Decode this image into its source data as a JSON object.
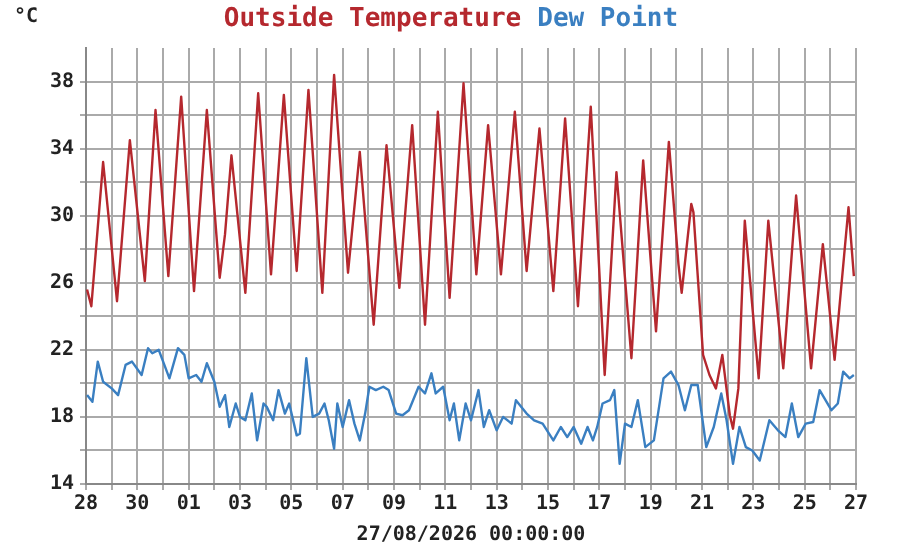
{
  "chart_data": {
    "type": "line",
    "xlabel": "27/08/2026 00:00:00",
    "ylabel": "°C",
    "legend": "top",
    "grid": true,
    "marker": "none",
    "line_style": "solid",
    "xlim": [
      "2026-07-28",
      "2026-08-27"
    ],
    "xticks": [
      {
        "value": "2026-07-28",
        "label": "28"
      },
      {
        "value": "2026-07-29",
        "label": null
      },
      {
        "value": "2026-07-30",
        "label": "30"
      },
      {
        "value": "2026-07-31",
        "label": null
      },
      {
        "value": "2026-08-01",
        "label": "01"
      },
      {
        "value": "2026-08-02",
        "label": null
      },
      {
        "value": "2026-08-03",
        "label": "03"
      },
      {
        "value": "2026-08-04",
        "label": null
      },
      {
        "value": "2026-08-05",
        "label": "05"
      },
      {
        "value": "2026-08-06",
        "label": null
      },
      {
        "value": "2026-08-07",
        "label": "07"
      },
      {
        "value": "2026-08-08",
        "label": null
      },
      {
        "value": "2026-08-09",
        "label": "09"
      },
      {
        "value": "2026-08-10",
        "label": null
      },
      {
        "value": "2026-08-11",
        "label": "11"
      },
      {
        "value": "2026-08-12",
        "label": null
      },
      {
        "value": "2026-08-13",
        "label": "13"
      },
      {
        "value": "2026-08-14",
        "label": null
      },
      {
        "value": "2026-08-15",
        "label": "15"
      },
      {
        "value": "2026-08-16",
        "label": null
      },
      {
        "value": "2026-08-17",
        "label": "17"
      },
      {
        "value": "2026-08-18",
        "label": null
      },
      {
        "value": "2026-08-19",
        "label": "19"
      },
      {
        "value": "2026-08-20",
        "label": null
      },
      {
        "value": "2026-08-21",
        "label": "21"
      },
      {
        "value": "2026-08-22",
        "label": null
      },
      {
        "value": "2026-08-23",
        "label": "23"
      },
      {
        "value": "2026-08-24",
        "label": null
      },
      {
        "value": "2026-08-25",
        "label": "25"
      },
      {
        "value": "2026-08-26",
        "label": null
      },
      {
        "value": "2026-08-27",
        "label": "27"
      }
    ],
    "ylim": [
      14,
      40
    ],
    "yticks": [
      14,
      {
        "value": 16,
        "label": null
      },
      18,
      {
        "value": 20,
        "label": null
      },
      22,
      {
        "value": 24,
        "label": null
      },
      26,
      {
        "value": 28,
        "label": null
      },
      30,
      {
        "value": 32,
        "label": null
      },
      34,
      {
        "value": 36,
        "label": null
      },
      38
    ],
    "series": [
      {
        "name": "Outside Temperature",
        "color": "#b5282e",
        "x": [
          "2026-07-28T01:00",
          "2026-07-28T05:00",
          "2026-07-28T16:00",
          "2026-07-29T05:00",
          "2026-07-29T17:00",
          "2026-07-30T07:00",
          "2026-07-30T17:00",
          "2026-07-31T05:00",
          "2026-07-31T17:00",
          "2026-08-01T05:00",
          "2026-08-01T17:00",
          "2026-08-02T05:00",
          "2026-08-02T10:00",
          "2026-08-02T16:00",
          "2026-08-03T05:00",
          "2026-08-03T17:00",
          "2026-08-04T05:00",
          "2026-08-04T17:00",
          "2026-08-05T05:00",
          "2026-08-05T16:00",
          "2026-08-06T05:00",
          "2026-08-06T16:00",
          "2026-08-07T05:00",
          "2026-08-07T16:00",
          "2026-08-08T05:00",
          "2026-08-08T17:00",
          "2026-08-09T05:00",
          "2026-08-09T17:00",
          "2026-08-10T05:00",
          "2026-08-10T17:00",
          "2026-08-11T04:00",
          "2026-08-11T17:00",
          "2026-08-12T05:00",
          "2026-08-12T16:00",
          "2026-08-13T04:00",
          "2026-08-13T17:00",
          "2026-08-14T04:00",
          "2026-08-14T16:00",
          "2026-08-15T05:00",
          "2026-08-15T16:00",
          "2026-08-16T04:00",
          "2026-08-16T16:00",
          "2026-08-17T05:00",
          "2026-08-17T16:00",
          "2026-08-18T06:00",
          "2026-08-18T17:00",
          "2026-08-19T05:00",
          "2026-08-19T17:00",
          "2026-08-20T02:00",
          "2026-08-20T05:00",
          "2026-08-20T14:00",
          "2026-08-20T16:00",
          "2026-08-21T01:00",
          "2026-08-21T07:00",
          "2026-08-21T13:00",
          "2026-08-21T19:00",
          "2026-08-22T02:00",
          "2026-08-22T05:00",
          "2026-08-22T10:00",
          "2026-08-22T16:00",
          "2026-08-23T05:00",
          "2026-08-23T14:00",
          "2026-08-24T04:00",
          "2026-08-24T16:00",
          "2026-08-25T06:00",
          "2026-08-25T17:00",
          "2026-08-26T04:00",
          "2026-08-26T17:00",
          "2026-08-26T22:00"
        ],
        "values": [
          25.6,
          24.6,
          33.2,
          24.9,
          34.5,
          26.1,
          36.3,
          26.4,
          37.1,
          25.5,
          36.3,
          26.3,
          28.9,
          33.6,
          25.4,
          37.3,
          26.5,
          37.2,
          26.7,
          37.5,
          25.4,
          38.4,
          26.6,
          33.8,
          23.5,
          34.2,
          25.7,
          35.4,
          23.5,
          36.2,
          25.1,
          37.9,
          26.5,
          35.4,
          26.5,
          36.2,
          26.7,
          35.2,
          25.5,
          35.8,
          24.6,
          36.5,
          20.5,
          32.6,
          21.5,
          33.3,
          23.1,
          34.4,
          27.1,
          25.4,
          30.7,
          30.2,
          21.7,
          20.5,
          19.7,
          21.7,
          18.1,
          17.3,
          19.7,
          29.7,
          20.3,
          29.7,
          20.9,
          31.2,
          20.9,
          28.3,
          21.4,
          30.5,
          26.4
        ]
      },
      {
        "name": "Dew Point",
        "color": "#3a7fc1",
        "x": [
          "2026-07-28T01:00",
          "2026-07-28T06:00",
          "2026-07-28T11:00",
          "2026-07-28T16:00",
          "2026-07-29T00:00",
          "2026-07-29T06:00",
          "2026-07-29T13:00",
          "2026-07-29T19:00",
          "2026-07-30T04:00",
          "2026-07-30T10:00",
          "2026-07-30T14:00",
          "2026-07-30T20:00",
          "2026-07-31T06:00",
          "2026-07-31T14:00",
          "2026-07-31T20:00",
          "2026-08-01T00:00",
          "2026-08-01T07:00",
          "2026-08-01T12:00",
          "2026-08-01T17:00",
          "2026-08-02T00:00",
          "2026-08-02T05:00",
          "2026-08-02T10:00",
          "2026-08-02T14:00",
          "2026-08-02T20:00",
          "2026-08-03T00:00",
          "2026-08-03T05:00",
          "2026-08-03T11:00",
          "2026-08-03T16:00",
          "2026-08-03T22:00",
          "2026-08-04T01:00",
          "2026-08-04T07:00",
          "2026-08-04T12:00",
          "2026-08-04T18:00",
          "2026-08-04T22:00",
          "2026-08-05T05:00",
          "2026-08-05T08:00",
          "2026-08-05T14:00",
          "2026-08-05T20:00",
          "2026-08-06T02:00",
          "2026-08-06T07:00",
          "2026-08-06T11:00",
          "2026-08-06T16:00",
          "2026-08-06T19:00",
          "2026-08-07T00:00",
          "2026-08-07T06:00",
          "2026-08-07T11:00",
          "2026-08-07T16:00",
          "2026-08-07T21:00",
          "2026-08-08T01:00",
          "2026-08-08T07:00",
          "2026-08-08T14:00",
          "2026-08-08T19:00",
          "2026-08-09T02:00",
          "2026-08-09T08:00",
          "2026-08-09T14:00",
          "2026-08-09T23:00",
          "2026-08-10T05:00",
          "2026-08-10T11:00",
          "2026-08-10T15:00",
          "2026-08-10T22:00",
          "2026-08-11T04:00",
          "2026-08-11T08:00",
          "2026-08-11T13:00",
          "2026-08-11T19:00",
          "2026-08-12T00:00",
          "2026-08-12T07:00",
          "2026-08-12T12:00",
          "2026-08-12T17:00",
          "2026-08-13T00:00",
          "2026-08-13T06:00",
          "2026-08-13T14:00",
          "2026-08-13T18:00",
          "2026-08-14T04:00",
          "2026-08-14T11:00",
          "2026-08-14T19:00",
          "2026-08-15T05:00",
          "2026-08-15T12:00",
          "2026-08-15T18:00",
          "2026-08-16T00:00",
          "2026-08-16T07:00",
          "2026-08-16T13:00",
          "2026-08-16T18:00",
          "2026-08-16T22:00",
          "2026-08-17T03:00",
          "2026-08-17T10:00",
          "2026-08-17T14:00",
          "2026-08-17T19:00",
          "2026-08-18T00:00",
          "2026-08-18T06:00",
          "2026-08-18T12:00",
          "2026-08-18T19:00",
          "2026-08-19T03:00",
          "2026-08-19T12:00",
          "2026-08-19T19:00",
          "2026-08-20T02:00",
          "2026-08-20T08:00",
          "2026-08-20T14:00",
          "2026-08-20T20:00",
          "2026-08-21T04:00",
          "2026-08-21T11:00",
          "2026-08-21T18:00",
          "2026-08-21T23:00",
          "2026-08-22T05:00",
          "2026-08-22T11:00",
          "2026-08-22T17:00",
          "2026-08-22T23:00",
          "2026-08-23T06:00",
          "2026-08-23T15:00",
          "2026-08-23T23:00",
          "2026-08-24T06:00",
          "2026-08-24T12:00",
          "2026-08-24T18:00",
          "2026-08-25T01:00",
          "2026-08-25T08:00",
          "2026-08-25T14:00",
          "2026-08-26T01:00",
          "2026-08-26T07:00",
          "2026-08-26T12:00",
          "2026-08-26T18:00",
          "2026-08-26T22:00"
        ],
        "values": [
          19.3,
          18.9,
          21.3,
          20.1,
          19.7,
          19.3,
          21.1,
          21.3,
          20.5,
          22.1,
          21.8,
          22.0,
          20.3,
          22.1,
          21.7,
          20.3,
          20.5,
          20.1,
          21.2,
          20.1,
          18.6,
          19.3,
          17.4,
          18.8,
          18.0,
          17.8,
          19.4,
          16.6,
          18.8,
          18.6,
          17.8,
          19.6,
          18.2,
          18.8,
          16.9,
          17.0,
          21.5,
          18.0,
          18.2,
          18.8,
          17.8,
          16.1,
          18.8,
          17.4,
          19.0,
          17.6,
          16.6,
          18.2,
          19.8,
          19.6,
          19.8,
          19.6,
          18.2,
          18.1,
          18.4,
          19.8,
          19.4,
          20.6,
          19.4,
          19.8,
          17.8,
          18.8,
          16.6,
          18.8,
          17.8,
          19.6,
          17.4,
          18.4,
          17.2,
          18.0,
          17.6,
          19.0,
          18.2,
          17.8,
          17.6,
          16.6,
          17.4,
          16.8,
          17.4,
          16.4,
          17.4,
          16.6,
          17.4,
          18.8,
          19.0,
          19.6,
          15.2,
          17.6,
          17.4,
          19.0,
          16.2,
          16.6,
          20.3,
          20.7,
          19.9,
          18.4,
          19.9,
          19.9,
          16.2,
          17.4,
          19.4,
          17.8,
          15.2,
          17.4,
          16.2,
          16.0,
          15.4,
          17.8,
          17.2,
          16.8,
          18.8,
          16.8,
          17.6,
          17.7,
          19.6,
          18.4,
          18.8,
          20.7,
          20.3,
          20.5
        ]
      }
    ]
  }
}
